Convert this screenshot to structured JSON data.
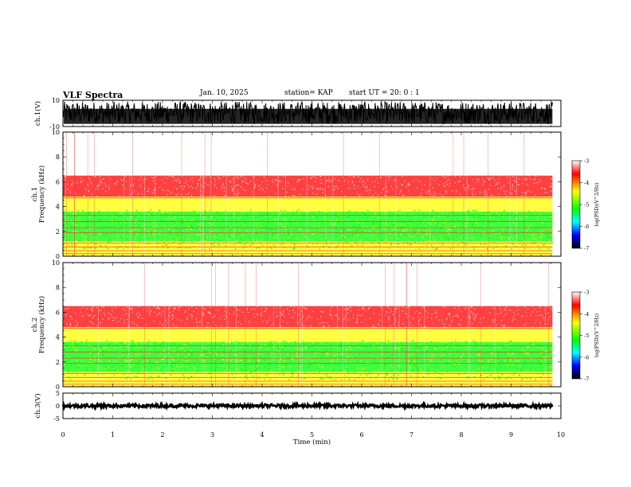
{
  "header": {
    "title": "VLF Spectra",
    "date": "Jan. 10, 2025",
    "station": "station= KAP",
    "start": "start UT =  20: 0  : 1"
  },
  "colors": {
    "background": "#ffffff",
    "trace": "#000000",
    "colormap": [
      "#ffffff",
      "#ff0000",
      "#ffff00",
      "#00ff00",
      "#00ffff",
      "#0000ff",
      "#000000"
    ]
  },
  "chart_data": [
    {
      "type": "line",
      "name": "ch1-waveform",
      "ylabel": "ch.1(V)",
      "ylim": [
        -10,
        10
      ],
      "yticks": [
        "10",
        "-10"
      ],
      "xlim": [
        0,
        10
      ],
      "grid": false,
      "description_values": {
        "amplitude_typical_V": [
          -10,
          10
        ]
      }
    },
    {
      "type": "heatmap",
      "name": "ch1-spectrogram",
      "ylabel": "ch.1\nFrequency (kHz)",
      "xlim": [
        0,
        10
      ],
      "ylim": [
        0,
        10
      ],
      "yticks": [
        "0",
        "2",
        "4",
        "6",
        "8",
        "10"
      ],
      "colorbar": {
        "label": "log(PSD)(V^2/Hz)",
        "range": [
          -7,
          -3
        ],
        "ticks": [
          "-3",
          "-4",
          "-5",
          "-6",
          "-7"
        ]
      },
      "bands_kHz": [
        {
          "from": 0.0,
          "to": 0.5,
          "level": -4.2
        },
        {
          "from": 0.5,
          "to": 1.2,
          "level": -4.5
        },
        {
          "from": 1.2,
          "to": 3.6,
          "level": -4.8
        },
        {
          "from": 3.6,
          "to": 4.8,
          "level": -4.3
        },
        {
          "from": 4.8,
          "to": 6.5,
          "level": -3.8
        },
        {
          "from": 6.5,
          "to": 10.0,
          "level": -3.3
        }
      ]
    },
    {
      "type": "heatmap",
      "name": "ch2-spectrogram",
      "ylabel": "ch.2\nFrequency (kHz)",
      "xlim": [
        0,
        10
      ],
      "ylim": [
        0,
        10
      ],
      "yticks": [
        "0",
        "2",
        "4",
        "6",
        "8",
        "10"
      ],
      "colorbar": {
        "label": "log(PSD)(V^2/Hz)",
        "range": [
          -7,
          -3
        ],
        "ticks": [
          "-3",
          "-4",
          "-5",
          "-6",
          "-7"
        ]
      },
      "bands_kHz": [
        {
          "from": 0.0,
          "to": 0.5,
          "level": -4.3
        },
        {
          "from": 0.5,
          "to": 1.2,
          "level": -4.6
        },
        {
          "from": 1.2,
          "to": 3.6,
          "level": -5.0
        },
        {
          "from": 3.6,
          "to": 4.8,
          "level": -4.4
        },
        {
          "from": 4.8,
          "to": 6.5,
          "level": -3.8
        },
        {
          "from": 6.5,
          "to": 10.0,
          "level": -3.3
        }
      ]
    },
    {
      "type": "line",
      "name": "ch3-waveform",
      "ylabel": "ch.3(V)",
      "ylim": [
        -5,
        5
      ],
      "yticks": [
        "5",
        "0",
        "-5"
      ],
      "xlim": [
        0,
        10
      ],
      "grid": false,
      "description_values": {
        "amplitude_typical_V": [
          -0.6,
          0.6
        ]
      }
    }
  ],
  "xaxis": {
    "label": "Time (min)",
    "ticks": [
      "0",
      "1",
      "2",
      "3",
      "4",
      "5",
      "6",
      "7",
      "8",
      "9",
      "10"
    ],
    "data_end_min": 9.83
  }
}
